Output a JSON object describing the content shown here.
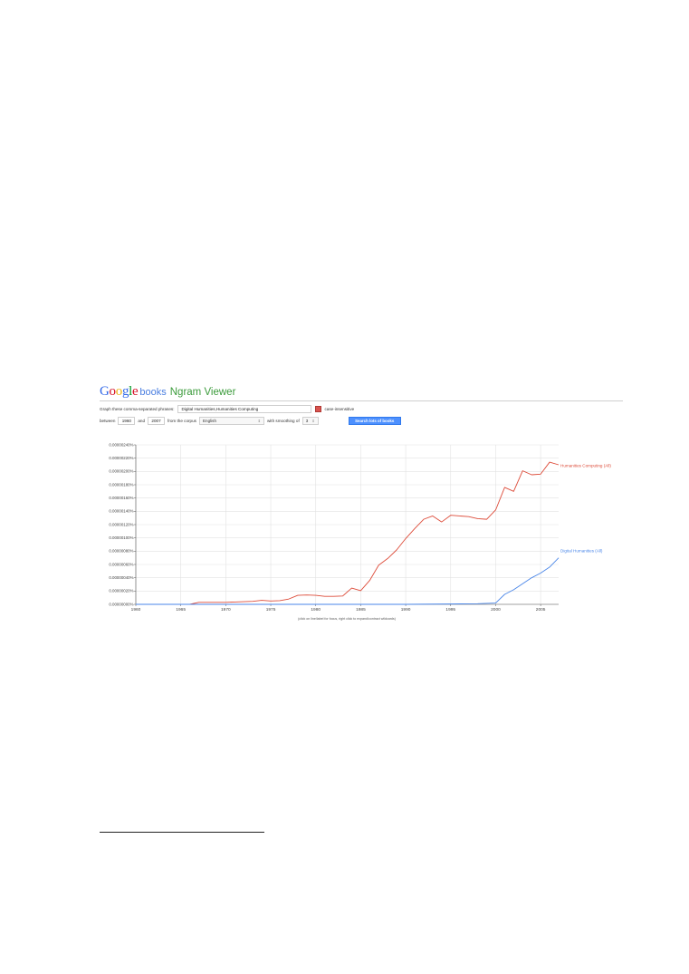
{
  "header": {
    "logo_google_letters": [
      {
        "char": "G",
        "color": "#3369e8"
      },
      {
        "char": "o",
        "color": "#d50f25"
      },
      {
        "char": "o",
        "color": "#eeb211"
      },
      {
        "char": "g",
        "color": "#3369e8"
      },
      {
        "char": "l",
        "color": "#009925"
      },
      {
        "char": "e",
        "color": "#d50f25"
      }
    ],
    "logo_books": "books",
    "title": "Ngram Viewer"
  },
  "form": {
    "phrases_label": "Graph these comma-separated phrases:",
    "phrases_value": "Digital Humanities,Humanities Computing",
    "case_label": "case-insensitive",
    "between_label": "between",
    "year_start": "1960",
    "and_label": "and",
    "year_end": "2007",
    "corpus_label": "from the corpus",
    "corpus_value": "English",
    "smoothing_label": "with smoothing of",
    "smoothing_value": "3",
    "search_label": "Search lots of books"
  },
  "chart_data": {
    "type": "line",
    "ylim": [
      0,
      2.4e-06
    ],
    "xlim": [
      1960,
      2007
    ],
    "yticks": [
      "0.00000000%",
      "0.00000020%",
      "0.00000040%",
      "0.00000060%",
      "0.00000080%",
      "0.00000100%",
      "0.00000120%",
      "0.00000140%",
      "0.00000160%",
      "0.00000180%",
      "0.00000200%",
      "0.00000220%",
      "0.00000240%"
    ],
    "xticks": [
      "1960",
      "1965",
      "1970",
      "1975",
      "1980",
      "1985",
      "1990",
      "1995",
      "2000",
      "2005"
    ],
    "grid": true,
    "note": "(click on line/label for focus, right click to expand/contract wildcards)",
    "colors": {
      "humanities_computing": "#dd4b39",
      "digital_humanities": "#4a86e8"
    },
    "series": [
      {
        "name": "Humanities Computing (All)",
        "x": [
          1960,
          1961,
          1962,
          1963,
          1964,
          1965,
          1966,
          1967,
          1968,
          1969,
          1970,
          1971,
          1972,
          1973,
          1974,
          1975,
          1976,
          1977,
          1978,
          1979,
          1980,
          1981,
          1982,
          1983,
          1984,
          1985,
          1986,
          1987,
          1988,
          1989,
          1990,
          1991,
          1992,
          1993,
          1994,
          1995,
          1996,
          1997,
          1998,
          1999,
          2000,
          2001,
          2002,
          2003,
          2004,
          2005,
          2006,
          2007
        ],
        "y": [
          0,
          0,
          0,
          0,
          0,
          0,
          0,
          3e-08,
          3e-08,
          3e-08,
          3e-08,
          3.5e-08,
          4e-08,
          4.5e-08,
          6e-08,
          5e-08,
          5.5e-08,
          8e-08,
          1.35e-07,
          1.4e-07,
          1.35e-07,
          1.2e-07,
          1.2e-07,
          1.25e-07,
          2.45e-07,
          2.05e-07,
          3.6e-07,
          5.9e-07,
          6.9e-07,
          8.2e-07,
          9.9e-07,
          1.14e-06,
          1.28e-06,
          1.33e-06,
          1.24e-06,
          1.34e-06,
          1.33e-06,
          1.32e-06,
          1.29e-06,
          1.28e-06,
          1.42e-06,
          1.76e-06,
          1.7e-06,
          2.01e-06,
          1.95e-06,
          1.96e-06,
          2.14e-06,
          2.1e-06
        ]
      },
      {
        "name": "Digital Humanities (All)",
        "x": [
          1960,
          1965,
          1970,
          1975,
          1980,
          1985,
          1990,
          1995,
          1998,
          2000,
          2001,
          2002,
          2003,
          2004,
          2005,
          2006,
          2007
        ],
        "y": [
          0,
          0,
          0,
          0,
          0,
          0,
          0,
          5e-09,
          1e-08,
          2e-08,
          1.5e-07,
          2.2e-07,
          3.1e-07,
          4e-07,
          4.7e-07,
          5.6e-07,
          7e-07
        ]
      }
    ]
  }
}
